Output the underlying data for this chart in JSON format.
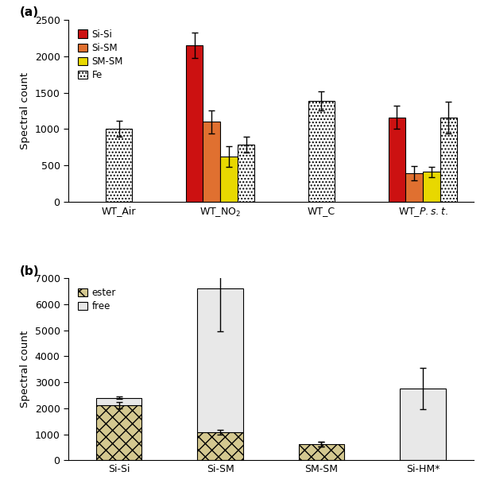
{
  "panel_a": {
    "groups": [
      "WT_Air",
      "WT_NO2",
      "WT_C",
      "WT_Pst"
    ],
    "series": [
      "Si-Si",
      "Si-SM",
      "SM-SM",
      "Fe"
    ],
    "colors_solid": [
      "#cc1111",
      "#e07030",
      "#e8d800",
      "#ffffff"
    ],
    "values": {
      "WT_Air": [
        null,
        null,
        null,
        1000
      ],
      "WT_NO2": [
        2150,
        1100,
        620,
        790
      ],
      "WT_C": [
        null,
        null,
        null,
        1390
      ],
      "WT_Pst": [
        1160,
        390,
        410,
        1160
      ]
    },
    "errors": {
      "WT_Air": [
        null,
        null,
        null,
        110
      ],
      "WT_NO2": [
        170,
        160,
        140,
        110
      ],
      "WT_C": [
        null,
        null,
        null,
        130
      ],
      "WT_Pst": [
        160,
        100,
        70,
        220
      ]
    },
    "group_labels": [
      "WT_Air",
      "WT_NO$_2$",
      "WT_C",
      "WT_$\\mathit{P.s.t.}$"
    ],
    "ylabel": "Spectral count",
    "ylim": [
      0,
      2500
    ],
    "yticks": [
      0,
      500,
      1000,
      1500,
      2000,
      2500
    ],
    "legend_labels": [
      "Si-Si",
      "Si-SM",
      "SM-SM",
      "Fe"
    ]
  },
  "panel_b": {
    "groups": [
      "Si-Si",
      "Si-SM",
      "SM-SM",
      "Si-HM*"
    ],
    "values_ester": [
      2130,
      1080,
      620,
      0
    ],
    "values_free": [
      270,
      5540,
      0,
      2760
    ],
    "errors_ester": [
      120,
      100,
      80,
      0
    ],
    "errors_free": [
      50,
      1650,
      0,
      800
    ],
    "ylabel": "Spectral count",
    "ylim": [
      0,
      7000
    ],
    "yticks": [
      0,
      1000,
      2000,
      3000,
      4000,
      5000,
      6000,
      7000
    ]
  }
}
